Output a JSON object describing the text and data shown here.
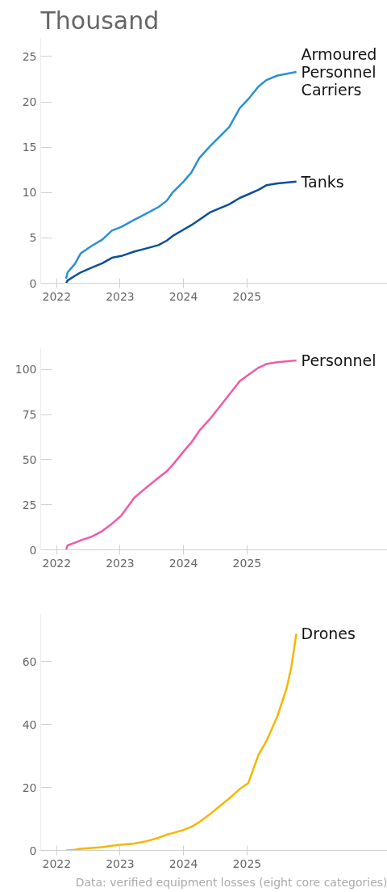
{
  "chart_data": [
    {
      "type": "line",
      "title": "Thousand",
      "x": [
        "2022-02-24",
        "2022-03-05",
        "2022-04-15",
        "2022-05-20",
        "2022-07-20",
        "2022-09-20",
        "2022-11-15",
        "2023-01-08",
        "2023-03-25",
        "2023-05-25",
        "2023-08-10",
        "2023-09-27",
        "2023-10-30",
        "2024-01-01",
        "2024-02-15",
        "2024-04-01",
        "2024-06-01",
        "2024-09-20",
        "2024-11-20",
        "2025-01-08",
        "2025-03-08",
        "2025-04-22",
        "2025-06-25",
        "2025-10-12"
      ],
      "series": [
        {
          "name": "Armoured Personnel Carriers",
          "color": "#2b90d0",
          "values": [
            0.5,
            1.2,
            2.1,
            3.3,
            4.1,
            4.8,
            5.8,
            6.2,
            7.0,
            7.6,
            8.4,
            9.1,
            10.0,
            11.2,
            12.2,
            13.8,
            15.1,
            17.2,
            19.3,
            20.3,
            21.7,
            22.4,
            22.9,
            23.3
          ]
        },
        {
          "name": "Tanks",
          "color": "#0b4e96",
          "values": [
            0,
            0.3,
            0.8,
            1.2,
            1.7,
            2.2,
            2.8,
            3.0,
            3.5,
            3.8,
            4.2,
            4.7,
            5.2,
            5.9,
            6.4,
            7.0,
            7.8,
            8.7,
            9.4,
            9.8,
            10.3,
            10.8,
            11.0,
            11.2
          ]
        }
      ],
      "xlim": [
        "2021-10-01",
        "2027-03-20"
      ],
      "xticks": [
        {
          "value": "2022-01-01",
          "label": "2022"
        },
        {
          "value": "2023-01-01",
          "label": "2023"
        },
        {
          "value": "2024-01-01",
          "label": "2024"
        },
        {
          "value": "2025-01-01",
          "label": "2025"
        }
      ],
      "ylim": [
        0,
        27
      ],
      "yticks": [
        0,
        5,
        10,
        15,
        20,
        25
      ],
      "grid": false,
      "legend": false,
      "line_style": "solid",
      "marker": "none"
    },
    {
      "type": "line",
      "x": [
        "2022-02-24",
        "2022-03-05",
        "2022-04-15",
        "2022-05-20",
        "2022-07-20",
        "2022-09-20",
        "2022-11-15",
        "2023-01-08",
        "2023-03-25",
        "2023-05-25",
        "2023-08-10",
        "2023-09-27",
        "2023-10-30",
        "2024-01-01",
        "2024-02-15",
        "2024-04-01",
        "2024-06-01",
        "2024-09-20",
        "2024-11-20",
        "2025-01-08",
        "2025-03-08",
        "2025-04-22",
        "2025-06-25",
        "2025-10-12"
      ],
      "series": [
        {
          "name": "Personnel",
          "color": "#f05aa6",
          "values": [
            0.3,
            2.5,
            3.9,
            5.3,
            7.2,
            10.4,
            14.5,
            19,
            29,
            34,
            40,
            43.6,
            47,
            54.5,
            59.5,
            66,
            72.5,
            86,
            93.5,
            97,
            101,
            103,
            104,
            105
          ]
        }
      ],
      "xlim": [
        "2021-10-01",
        "2027-03-20"
      ],
      "xticks": [
        {
          "value": "2022-01-01",
          "label": "2022"
        },
        {
          "value": "2023-01-01",
          "label": "2023"
        },
        {
          "value": "2024-01-01",
          "label": "2024"
        },
        {
          "value": "2025-01-01",
          "label": "2025"
        }
      ],
      "ylim": [
        0,
        112
      ],
      "yticks": [
        0,
        25,
        50,
        75,
        100
      ],
      "grid": false,
      "legend": false,
      "line_style": "solid",
      "marker": "none"
    },
    {
      "type": "line",
      "x": [
        "2022-02-24",
        "2022-03-05",
        "2022-04-15",
        "2022-05-20",
        "2022-07-20",
        "2022-09-20",
        "2022-11-15",
        "2023-01-08",
        "2023-03-25",
        "2023-05-25",
        "2023-08-10",
        "2023-09-27",
        "2023-10-30",
        "2024-01-01",
        "2024-02-15",
        "2024-04-01",
        "2024-06-01",
        "2024-09-20",
        "2024-11-20",
        "2025-01-08",
        "2025-03-08",
        "2025-04-22",
        "2025-06-25",
        "2025-08-18",
        "2025-09-12",
        "2025-10-12"
      ],
      "series": [
        {
          "name": "Drones",
          "color": "#f5b700",
          "values": [
            0,
            0,
            0.2,
            0.5,
            0.8,
            1.0,
            1.5,
            1.8,
            2.2,
            2.8,
            4.0,
            5.0,
            5.5,
            6.5,
            7.5,
            9.0,
            11.5,
            16.5,
            19.5,
            21.4,
            30.4,
            34.7,
            42.7,
            51.8,
            58,
            68.9
          ]
        }
      ],
      "xlim": [
        "2021-10-01",
        "2027-03-20"
      ],
      "xticks": [
        {
          "value": "2022-01-01",
          "label": "2022"
        },
        {
          "value": "2023-01-01",
          "label": "2023"
        },
        {
          "value": "2024-01-01",
          "label": "2024"
        },
        {
          "value": "2025-01-01",
          "label": "2025"
        }
      ],
      "ylim": [
        0,
        75
      ],
      "yticks": [
        0,
        20,
        40,
        60
      ],
      "grid": false,
      "legend": false,
      "line_style": "solid",
      "marker": "none",
      "annotations": [
        "Data: verified equipment losses (eight core categories)"
      ]
    }
  ]
}
